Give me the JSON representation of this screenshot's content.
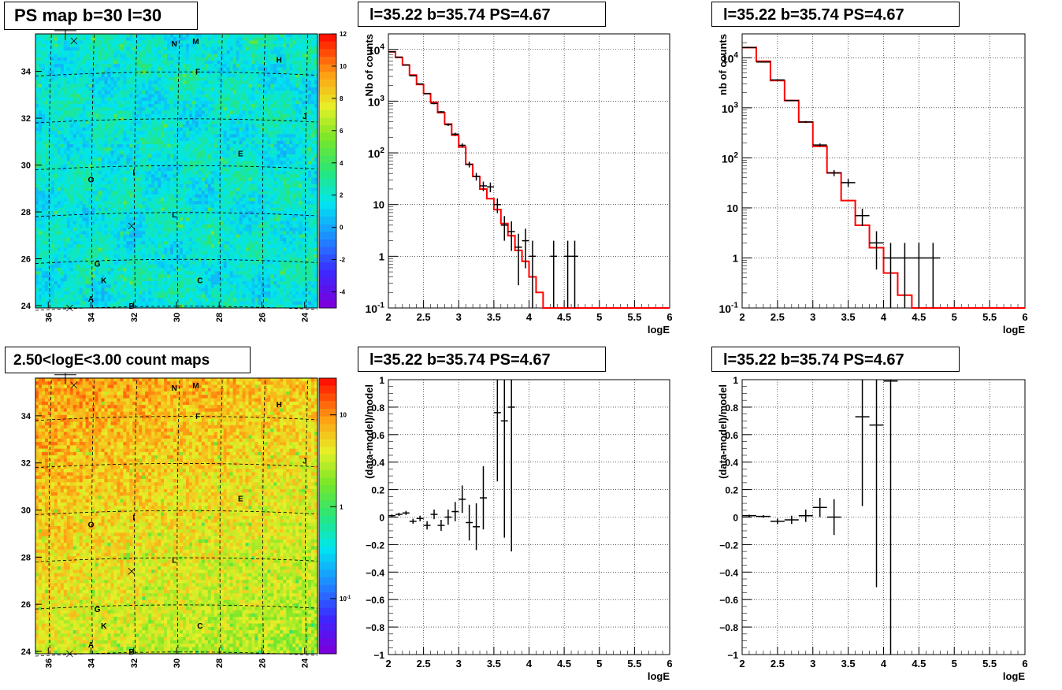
{
  "panels": {
    "map_top_title": "PS map b=30 l=30",
    "map_bottom_title": "2.50<logE<3.00 count maps",
    "spec_mid_title": "l=35.22 b=35.74 PS=4.67",
    "spec_right_title": "l=35.22 b=35.74 PS=4.67",
    "res_mid_title": "l=35.22 b=35.74 PS=4.67",
    "res_right_title": "l=35.22 b=35.74 PS=4.67"
  },
  "labels": {
    "spec_mid_ylabel": "Nb of counts",
    "spec_right_ylabel": "nb of counts",
    "res_ylabel": "(data-model)/model",
    "xlabel": "logE"
  },
  "colors": {
    "model_line": "#ff0000",
    "data_marker": "#000000",
    "grid": "#000000"
  },
  "chart_data": [
    {
      "type": "heatmap",
      "title": "PS map b=30 l=30",
      "x_ticks": [
        "36",
        "34",
        "32",
        "30",
        "28",
        "26",
        "24"
      ],
      "y_ticks": [
        "24",
        "26",
        "28",
        "30",
        "32",
        "34"
      ],
      "xlim": [
        36.6,
        23.4
      ],
      "ylim": [
        23.9,
        35.6
      ],
      "colorbar_ticks": [
        "12",
        "10",
        "8",
        "6",
        "4",
        "2",
        "0",
        "-2",
        "-4"
      ],
      "colorbar_range": [
        -5,
        12
      ],
      "sources": [
        {
          "name": "N",
          "l": 30.1,
          "b": 35.2
        },
        {
          "name": "M",
          "l": 29.1,
          "b": 35.3
        },
        {
          "name": "H",
          "l": 25.2,
          "b": 34.5
        },
        {
          "name": "F",
          "l": 29.0,
          "b": 34.0
        },
        {
          "name": "J",
          "l": 24.0,
          "b": 32.1
        },
        {
          "name": "E",
          "l": 27.0,
          "b": 30.5
        },
        {
          "name": "I",
          "l": 32.0,
          "b": 29.7
        },
        {
          "name": "O",
          "l": 34.0,
          "b": 29.4
        },
        {
          "name": "L",
          "l": 30.1,
          "b": 27.9
        },
        {
          "name": "G",
          "l": 33.7,
          "b": 25.8
        },
        {
          "name": "K",
          "l": 33.4,
          "b": 25.1
        },
        {
          "name": "C",
          "l": 28.9,
          "b": 25.1
        },
        {
          "name": "A",
          "l": 34.0,
          "b": 24.3
        },
        {
          "name": "B",
          "l": 32.1,
          "b": 24.0
        }
      ],
      "crosses": [
        {
          "l": 34.8,
          "b": 35.3
        },
        {
          "l": 32.1,
          "b": 27.4
        },
        {
          "l": 35.0,
          "b": 23.9
        }
      ],
      "big_cross": {
        "l": 35.2,
        "b": 35.74
      }
    },
    {
      "type": "heatmap",
      "title": "2.50<logE<3.00 count maps",
      "x_ticks": [
        "36",
        "34",
        "32",
        "30",
        "28",
        "26",
        "24"
      ],
      "y_ticks": [
        "24",
        "26",
        "28",
        "30",
        "32",
        "34"
      ],
      "xlim": [
        36.6,
        23.4
      ],
      "ylim": [
        23.9,
        35.6
      ],
      "colorbar_ticks": [
        "10",
        "1",
        "10-1"
      ],
      "colorbar_log_range": [
        -1.6,
        1.4
      ],
      "sources": "same as PS map"
    },
    {
      "type": "line",
      "title": "l=35.22 b=35.74 PS=4.67",
      "xlabel": "logE",
      "ylabel": "Nb of counts",
      "xlim": [
        2,
        6
      ],
      "ylim": [
        0.1,
        20000
      ],
      "yscale": "log",
      "x_ticks": [
        "2",
        "2.5",
        "3",
        "3.5",
        "4",
        "4.5",
        "5",
        "5.5",
        "6"
      ],
      "y_ticks": [
        "10^-1",
        "1",
        "10",
        "10^2",
        "10^3",
        "10^4"
      ],
      "grid": true,
      "series": [
        {
          "role": "model",
          "bin_edges": [
            2.0,
            2.1,
            2.2,
            2.3,
            2.4,
            2.5,
            2.6,
            2.7,
            2.8,
            2.9,
            3.0,
            3.1,
            3.2,
            3.3,
            3.4,
            3.5,
            3.6,
            3.7,
            3.8,
            3.9,
            4.0,
            4.1,
            4.2,
            6.0
          ],
          "values": [
            9000,
            7000,
            5000,
            3200,
            2100,
            1400,
            950,
            600,
            360,
            220,
            130,
            60,
            35,
            20,
            13,
            8,
            4.3,
            2.5,
            1.3,
            0.8,
            0.4,
            0.2,
            0.1
          ]
        },
        {
          "role": "data",
          "x": [
            2.05,
            2.15,
            2.25,
            2.35,
            2.45,
            2.55,
            2.65,
            2.75,
            2.85,
            2.95,
            3.05,
            3.15,
            3.25,
            3.35,
            3.45,
            3.55,
            3.65,
            3.75,
            3.85,
            3.95,
            4.05,
            4.35,
            4.55,
            4.65
          ],
          "y": [
            9000,
            7100,
            5000,
            3100,
            2150,
            1400,
            900,
            620,
            350,
            230,
            140,
            60,
            35,
            23,
            22,
            10,
            4,
            3,
            1.5,
            2,
            1,
            1,
            1,
            1
          ]
        }
      ]
    },
    {
      "type": "line",
      "title": "l=35.22 b=35.74 PS=4.67",
      "xlabel": "logE",
      "ylabel": "nb of counts",
      "xlim": [
        2,
        6
      ],
      "ylim": [
        0.1,
        30000
      ],
      "yscale": "log",
      "x_ticks": [
        "2",
        "2.5",
        "3",
        "3.5",
        "4",
        "4.5",
        "5",
        "5.5",
        "6"
      ],
      "y_ticks": [
        "10^-1",
        "1",
        "10",
        "10^2",
        "10^3",
        "10^4"
      ],
      "grid": true,
      "series": [
        {
          "role": "model",
          "bin_edges": [
            2.0,
            2.2,
            2.4,
            2.6,
            2.8,
            3.0,
            3.2,
            3.4,
            3.6,
            3.8,
            4.0,
            4.2,
            4.4,
            6.0
          ],
          "values": [
            16000,
            8500,
            3500,
            1400,
            520,
            170,
            50,
            14,
            4.5,
            1.6,
            0.5,
            0.18,
            0.1
          ]
        },
        {
          "role": "data",
          "x": [
            2.1,
            2.3,
            2.5,
            2.7,
            2.9,
            3.1,
            3.3,
            3.5,
            3.7,
            3.9,
            4.1,
            4.3,
            4.5,
            4.7
          ],
          "y": [
            16000,
            8200,
            3600,
            1400,
            520,
            180,
            50,
            32,
            7,
            2,
            1,
            1,
            1,
            1
          ]
        }
      ]
    },
    {
      "type": "scatter",
      "title": "l=35.22 b=35.74 PS=4.67",
      "xlabel": "logE",
      "ylabel": "(data-model)/model",
      "xlim": [
        2,
        6
      ],
      "ylim": [
        -1,
        1
      ],
      "x_ticks": [
        "2",
        "2.5",
        "3",
        "3.5",
        "4",
        "4.5",
        "5",
        "5.5",
        "6"
      ],
      "y_ticks": [
        "-1",
        "-0.8",
        "-0.6",
        "-0.4",
        "-0.2",
        "0",
        "0.2",
        "0.4",
        "0.6",
        "0.8",
        "1"
      ],
      "grid": true,
      "series": [
        {
          "x": [
            2.05,
            2.15,
            2.25,
            2.35,
            2.45,
            2.55,
            2.65,
            2.75,
            2.85,
            2.95,
            3.05,
            3.15,
            3.25,
            3.35,
            3.55,
            3.65,
            3.75
          ],
          "y": [
            0.01,
            0.02,
            0.03,
            -0.03,
            -0.01,
            -0.06,
            0.02,
            -0.06,
            0.0,
            0.04,
            0.13,
            -0.04,
            -0.07,
            0.14,
            0.76,
            0.7,
            0.8
          ],
          "err": [
            0.01,
            0.012,
            0.015,
            0.018,
            0.02,
            0.03,
            0.035,
            0.04,
            0.055,
            0.07,
            0.1,
            0.13,
            0.17,
            0.23,
            0.5,
            0.85,
            1.05
          ]
        }
      ]
    },
    {
      "type": "scatter",
      "title": "l=35.22 b=35.74 PS=4.67",
      "xlabel": "logE",
      "ylabel": "(data-model)/model",
      "xlim": [
        2,
        6
      ],
      "ylim": [
        -1,
        1
      ],
      "x_ticks": [
        "2",
        "2.5",
        "3",
        "3.5",
        "4",
        "4.5",
        "5",
        "5.5",
        "6"
      ],
      "y_ticks": [
        "-1",
        "-0.8",
        "-0.6",
        "-0.4",
        "-0.2",
        "0",
        "0.2",
        "0.4",
        "0.6",
        "0.8",
        "1"
      ],
      "grid": true,
      "series": [
        {
          "x": [
            2.1,
            2.3,
            2.5,
            2.7,
            2.9,
            3.1,
            3.3,
            3.7,
            3.9,
            4.1
          ],
          "y": [
            0.01,
            0.005,
            -0.03,
            -0.02,
            0.01,
            0.07,
            0.0,
            0.73,
            0.67,
            0.99
          ],
          "err": [
            0.008,
            0.01,
            0.02,
            0.03,
            0.045,
            0.07,
            0.13,
            0.65,
            1.18,
            2.0
          ]
        }
      ]
    }
  ]
}
